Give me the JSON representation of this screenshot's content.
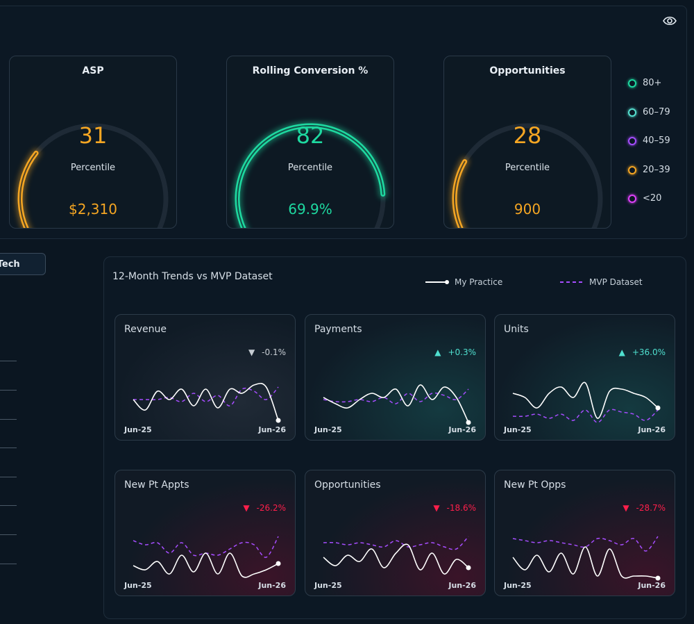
{
  "gauges": [
    {
      "title": "ASP",
      "value": "31",
      "label": "Percentile",
      "sub": "$2,310",
      "percentile": 31,
      "color": "#f5a623"
    },
    {
      "title": "Rolling Conversion %",
      "value": "82",
      "label": "Percentile",
      "sub": "69.9%",
      "percentile": 82,
      "color": "#1ed9a0"
    },
    {
      "title": "Opportunities",
      "value": "28",
      "label": "Percentile",
      "sub": "900",
      "percentile": 28,
      "color": "#f5a623"
    }
  ],
  "legend": [
    {
      "label": "80+",
      "color": "#1ed9a0"
    },
    {
      "label": "60–79",
      "color": "#56e0d0"
    },
    {
      "label": "40–59",
      "color": "#a64dff"
    },
    {
      "label": "20–39",
      "color": "#f5a623"
    },
    {
      "label": "<20",
      "color": "#e040fb"
    }
  ],
  "left": {
    "button_label": "/Tech"
  },
  "trends": {
    "title": "12-Month Trends vs MVP Dataset",
    "legend_my": "My Practice",
    "legend_mvp": "MVP Dataset",
    "cards": [
      {
        "title": "Revenue",
        "change": "-0.1%",
        "dir": "down",
        "tone": "neutral",
        "start": "Jun-25",
        "end": "Jun-26",
        "my": [
          0.55,
          0.3,
          0.75,
          0.55,
          0.8,
          0.4,
          0.8,
          0.35,
          0.8,
          0.7,
          0.9,
          0.85,
          0.05
        ],
        "mvp": [
          0.55,
          0.55,
          0.55,
          0.6,
          0.5,
          0.7,
          0.5,
          0.65,
          0.4,
          0.8,
          0.75,
          0.55,
          0.85
        ]
      },
      {
        "title": "Payments",
        "change": "+0.3%",
        "dir": "up",
        "tone": "teal",
        "start": "Jun-25",
        "end": "Jun-26",
        "my": [
          0.6,
          0.45,
          0.35,
          0.55,
          0.7,
          0.6,
          0.8,
          0.4,
          0.9,
          0.55,
          0.85,
          0.6,
          0.0
        ],
        "mvp": [
          0.55,
          0.5,
          0.5,
          0.55,
          0.5,
          0.6,
          0.45,
          0.7,
          0.5,
          0.7,
          0.65,
          0.55,
          0.8
        ]
      },
      {
        "title": "Units",
        "change": "+36.0%",
        "dir": "up",
        "tone": "teal",
        "start": "Jun-25",
        "end": "Jun-26",
        "my": [
          0.7,
          0.6,
          0.35,
          0.7,
          0.85,
          0.6,
          0.95,
          0.1,
          0.75,
          0.8,
          0.7,
          0.6,
          0.35
        ],
        "mvp": [
          0.15,
          0.15,
          0.2,
          0.1,
          0.2,
          0.05,
          0.3,
          0.0,
          0.3,
          0.25,
          0.2,
          0.05,
          0.3
        ]
      },
      {
        "title": "New Pt Appts",
        "change": "-26.2%",
        "dir": "down",
        "tone": "red",
        "start": "Jun-25",
        "end": "Jun-26",
        "my": [
          0.3,
          0.2,
          0.4,
          0.1,
          0.55,
          0.15,
          0.6,
          0.1,
          0.6,
          0.05,
          0.1,
          0.2,
          0.35
        ],
        "mvp": [
          0.9,
          0.8,
          0.85,
          0.6,
          0.85,
          0.55,
          0.6,
          0.55,
          0.7,
          0.85,
          0.8,
          0.5,
          1.0
        ]
      },
      {
        "title": "Opportunities",
        "change": "-18.6%",
        "dir": "down",
        "tone": "red",
        "start": "Jun-25",
        "end": "Jun-26",
        "my": [
          0.5,
          0.3,
          0.55,
          0.4,
          0.7,
          0.25,
          0.6,
          0.8,
          0.2,
          0.6,
          0.1,
          0.45,
          0.25
        ],
        "mvp": [
          0.85,
          0.85,
          0.8,
          0.85,
          0.8,
          0.75,
          0.9,
          0.75,
          0.8,
          0.85,
          0.75,
          0.7,
          1.0
        ]
      },
      {
        "title": "New Pt Opps",
        "change": "-28.7%",
        "dir": "down",
        "tone": "red",
        "start": "Jun-25",
        "end": "Jun-26",
        "my": [
          0.5,
          0.2,
          0.55,
          0.15,
          0.6,
          0.1,
          0.75,
          0.05,
          0.7,
          0.05,
          0.05,
          0.05,
          0.0
        ],
        "mvp": [
          0.95,
          0.9,
          0.85,
          0.9,
          0.85,
          0.8,
          0.75,
          0.95,
          0.9,
          0.8,
          0.95,
          0.65,
          1.0
        ]
      }
    ]
  }
}
